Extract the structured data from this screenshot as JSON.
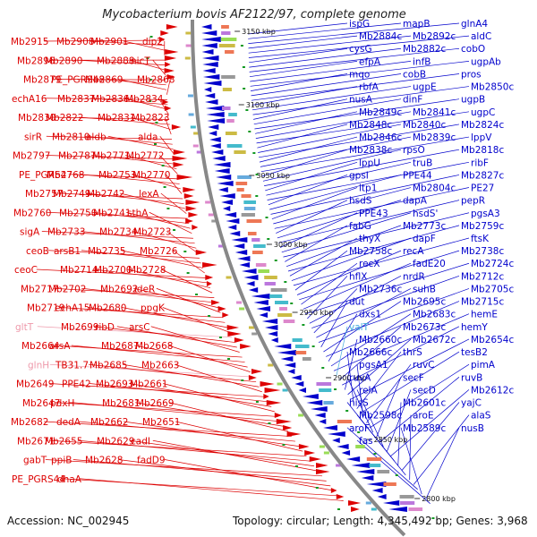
{
  "title": "Mycobacterium bovis AF2122/97, complete genome",
  "footer": {
    "accession": "Accession: NC_002945",
    "topology": "Topology: circular; Length: 4,345,492 bp; Genes: 3,968"
  },
  "colors": {
    "left_strand": "#dd0000",
    "right_strand": "#0000cc",
    "trna_label": "#44aadd",
    "pseudo_label": "#ee99aa",
    "backbone": "#888888",
    "dot": "#119922"
  },
  "axis_ticks": [
    "3150 kbp",
    "3100 kbp",
    "3050 kbp",
    "3000 kbp",
    "2950 kbp",
    "2900 kbp",
    "2850 kbp",
    "2800 kbp"
  ],
  "left_labels": [
    "Mb2915",
    "Mb2908",
    "Mb2901",
    "dip2",
    "Mb2896",
    "Mb2890",
    "Mb2888",
    "nicT",
    "Mb2879",
    "PE_PGRS48",
    "Mb2869",
    "Mb2868",
    "echA16",
    "Mb2837",
    "Mb2836",
    "Mb2834",
    "Mb2830",
    "Mb2822",
    "Mb2831",
    "Mb2823",
    "sirR",
    "Mb2810",
    "aldb",
    "alda",
    "Mb2797",
    "Mb2787",
    "Mb2771",
    "Mb2772",
    "PE_PGRS47",
    "Mb2768",
    "Mb2753",
    "Mb2770",
    "Mb2757",
    "Mb2749",
    "Mb2742",
    "lexA",
    "Mb2760",
    "Mb2750",
    "Mb2741",
    "sthA",
    "sigA",
    "Mb2733",
    "Mb2734",
    "Mb2723",
    "ceoB",
    "arsB1",
    "Mb2735",
    "Mb2726",
    "ceoC",
    "Mb2714",
    "Mb2700",
    "Mb2728",
    "Mb2717",
    "Mb2702",
    "Mb2692",
    "ideR",
    "Mb2719",
    "echA15",
    "Mb2680",
    "ppgK",
    "Mb2699",
    "ribD",
    "arsC",
    "Mb2664",
    "arsA",
    "Mb2687",
    "Mb2668",
    "TB31.7",
    "Mb2685",
    "Mb2663",
    "Mb2649",
    "PPE42",
    "Mb2693",
    "Mb2661",
    "Mb2647",
    "pdxH",
    "Mb2681",
    "Mb2669",
    "Mb2682",
    "dedA",
    "Mb2662",
    "Mb2651",
    "Mb2671",
    "Mb2655",
    "Mb2629",
    "cadI",
    "gabT",
    "ppiB",
    "Mb2628",
    "fadD9",
    "PE_PGRS44",
    "dhaA"
  ],
  "pseudo_labels": [
    "gltT",
    "glnH"
  ],
  "right_labels": [
    "ispG",
    "mapB",
    "glnA4",
    "Mb2884c",
    "Mb2892c",
    "aldC",
    "cysG",
    "Mb2882c",
    "cobO",
    "efpA",
    "infB",
    "ugpAb",
    "mqo",
    "cobB",
    "pros",
    "rbfA",
    "ugpE",
    "Mb2850c",
    "nusA",
    "dinF",
    "ugpB",
    "Mb2849c",
    "Mb2841c",
    "ugpC",
    "Mb2848c",
    "Mb2840c",
    "Mb2824c",
    "Mb2846c",
    "Mb2839c",
    "lppV",
    "Mb2838c",
    "rpsO",
    "Mb2818c",
    "lppU",
    "truB",
    "ribF",
    "gpsI",
    "PPE44",
    "Mb2827c",
    "ltp1",
    "Mb2804c",
    "PE27",
    "hsdS",
    "dapA",
    "pepR",
    "PPE43",
    "hsdS'",
    "pgsA3",
    "fabG",
    "Mb2773c",
    "Mb2759c",
    "thyX",
    "dapF",
    "ftsK",
    "Mb2758c",
    "recA",
    "Mb2738c",
    "recX",
    "fadE20",
    "Mb2724c",
    "hflX",
    "nrdR",
    "Mb2712c",
    "Mb2736c",
    "suhB",
    "Mb2705c",
    "dut",
    "Mb2695c",
    "Mb2715c",
    "dxs1",
    "Mb2683c",
    "hemE",
    "Mb2673c",
    "hemY",
    "Mb2660c",
    "Mb2672c",
    "Mb2654c",
    "Mb2666c",
    "thrS",
    "tesB2",
    "pgsA1",
    "ruvC",
    "pimA",
    "ruvA",
    "secF",
    "ruvB",
    "relA",
    "secD",
    "Mb2612c",
    "hisS",
    "Mb2601c",
    "yajC",
    "Mb2598c",
    "aroE",
    "alaS",
    "aroF",
    "Mb2589c",
    "nusB",
    "fas"
  ],
  "trna_labels": [
    "valT"
  ]
}
